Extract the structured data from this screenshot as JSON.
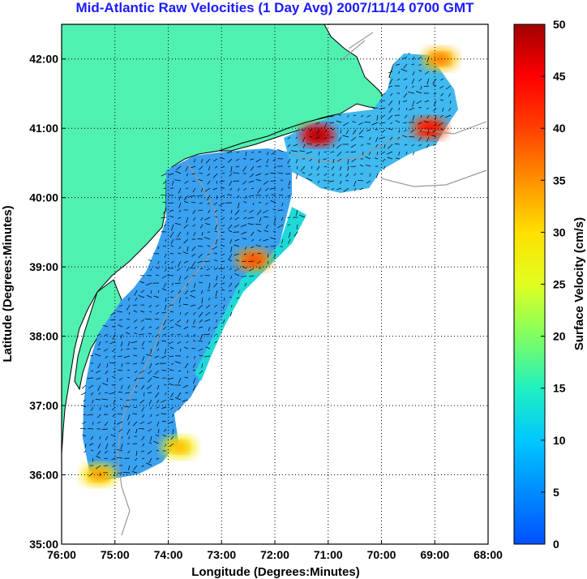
{
  "chart_data": {
    "type": "heatmap",
    "title": "Mid-Atlantic Raw Velocities (1 Day Avg) 2007/11/14 0700 GMT",
    "xlabel": "Longitude (Degrees:Minutes)",
    "ylabel": "Latitude (Degrees:Minutes)",
    "xlim": [
      -76,
      -68
    ],
    "ylim": [
      35,
      42.5
    ],
    "x_ticks": [
      "76:00",
      "75:00",
      "74:00",
      "73:00",
      "72:00",
      "71:00",
      "70:00",
      "69:00",
      "68:00"
    ],
    "y_ticks": [
      "35:00",
      "36:00",
      "37:00",
      "38:00",
      "39:00",
      "40:00",
      "41:00",
      "42:00"
    ],
    "grid": true,
    "colorbar": {
      "label": "Surface Velocity (cm/s)",
      "range": [
        0,
        50
      ],
      "ticks": [
        "0",
        "5",
        "10",
        "15",
        "20",
        "25",
        "30",
        "35",
        "40",
        "45",
        "50"
      ],
      "colormap": "jet"
    },
    "land_color": "#50f0b0",
    "high_velocity_regions": [
      {
        "lon": -71.2,
        "lat": 40.9,
        "speed": 45
      },
      {
        "lon": -72.4,
        "lat": 39.1,
        "speed": 35
      },
      {
        "lon": -69.1,
        "lat": 41.0,
        "speed": 40
      },
      {
        "lon": -68.9,
        "lat": 42.0,
        "speed": 32
      },
      {
        "lon": -75.3,
        "lat": 36.0,
        "speed": 30
      },
      {
        "lon": -73.8,
        "lat": 36.4,
        "speed": 28
      }
    ]
  }
}
